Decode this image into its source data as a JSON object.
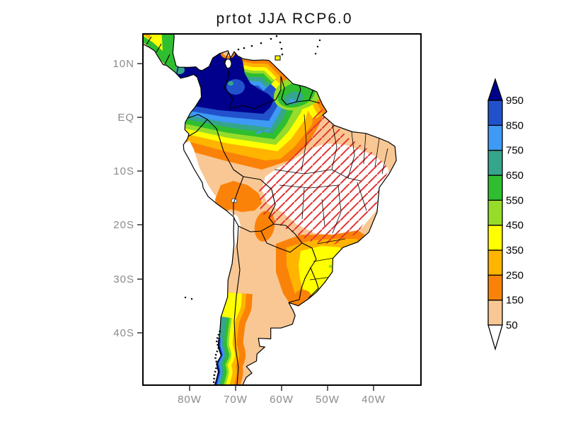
{
  "chart_data": {
    "type": "heatmap",
    "title": "prtot JJA RCP6.0",
    "variable": "prtot",
    "season": "JJA",
    "scenario": "RCP6.0",
    "region": "South America",
    "x_ticks": [
      "80W",
      "70W",
      "60W",
      "50W",
      "40W"
    ],
    "y_ticks": [
      "10N",
      "EQ",
      "10S",
      "20S",
      "30S",
      "40S"
    ],
    "colorbar_levels": [
      50,
      150,
      250,
      350,
      450,
      550,
      650,
      750,
      850,
      950
    ],
    "colorbar_colors_low_to_high": [
      "#F8C794",
      "#FB8208",
      "#FFB400",
      "#FFFF00",
      "#96DC28",
      "#2FBE2F",
      "#35A58C",
      "#3E9AF5",
      "#2152CC"
    ],
    "above_max_color": "#00008C",
    "below_min_color": "#FFFFFF",
    "level_colors": {
      "gt950": "#00008C",
      "850-950": "#2152CC",
      "750-850": "#3E9AF5",
      "650-750": "#35A58C",
      "550-650": "#2FBE2F",
      "450-550": "#96DC28",
      "350-450": "#FFFF00",
      "250-350": "#FFB400",
      "150-250": "#FB8208",
      "50-150": "#F8C794",
      "lt50": "#FFFFFF"
    },
    "hatch_color": "#E33434",
    "hatching": "red diagonal hatching overlay across central and northeastern Brazil",
    "legend_position": "right",
    "axis_label_color": "#8a8a8a",
    "tick_mark_color": "#222222",
    "features": [
      {
        "area": "NW Amazon basin / Colombia / W Venezuela",
        "approx_value": "> 950"
      },
      {
        "area": "Guianas interior bullseye",
        "approx_value": "650-850"
      },
      {
        "area": "Venezuelan Caribbean coast",
        "approx_value": "150-350"
      },
      {
        "area": "Southern Amazon flank, banded N to S",
        "approx_value": "950 down to 150"
      },
      {
        "area": "Central and NE Brazil interior (hatched, white)",
        "approx_value": "< 50"
      },
      {
        "area": "SE Brazil / Uruguay",
        "approx_value": "250-450"
      },
      {
        "area": "Southern Chile coastal strip",
        "approx_value": "150 up to > 950 toward coast"
      },
      {
        "area": "Argentina / Patagonia interior",
        "approx_value": "50-150"
      },
      {
        "area": "Peru coast / Atacama-Altiplano",
        "approx_value": "< 50"
      }
    ]
  }
}
